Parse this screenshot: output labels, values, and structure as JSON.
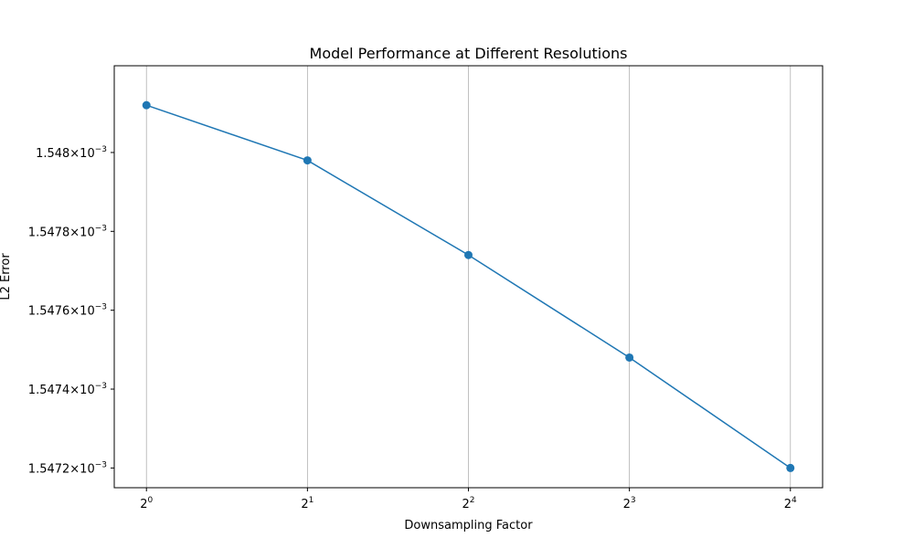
{
  "chart_data": {
    "type": "line",
    "title": "Model Performance at Different Resolutions",
    "xlabel": "Downsampling Factor",
    "ylabel": "L2 Error",
    "x_scale": "log2",
    "x": [
      1,
      2,
      4,
      8,
      16
    ],
    "x_tick_labels": [
      {
        "base": "2",
        "exp": "0"
      },
      {
        "base": "2",
        "exp": "1"
      },
      {
        "base": "2",
        "exp": "2"
      },
      {
        "base": "2",
        "exp": "3"
      },
      {
        "base": "2",
        "exp": "4"
      }
    ],
    "y_scale": "log",
    "y_ticks": [
      0.0015472,
      0.0015474,
      0.0015476,
      0.0015478,
      0.001548
    ],
    "y_tick_labels": [
      {
        "mantissa": "1.5472",
        "base": "10",
        "exp": "−3"
      },
      {
        "mantissa": "1.5474",
        "base": "10",
        "exp": "−3"
      },
      {
        "mantissa": "1.5476",
        "base": "10",
        "exp": "−3"
      },
      {
        "mantissa": "1.5478",
        "base": "10",
        "exp": "−3"
      },
      {
        "mantissa": "1.548",
        "base": "10",
        "exp": "−3"
      }
    ],
    "ylim": [
      0.00154715,
      0.00154822
    ],
    "series": [
      {
        "values": [
          0.00154812,
          0.00154798,
          0.00154774,
          0.00154748,
          0.0015472
        ],
        "color": "#1f77b4",
        "marker": "circle"
      }
    ],
    "grid": "x-only"
  }
}
